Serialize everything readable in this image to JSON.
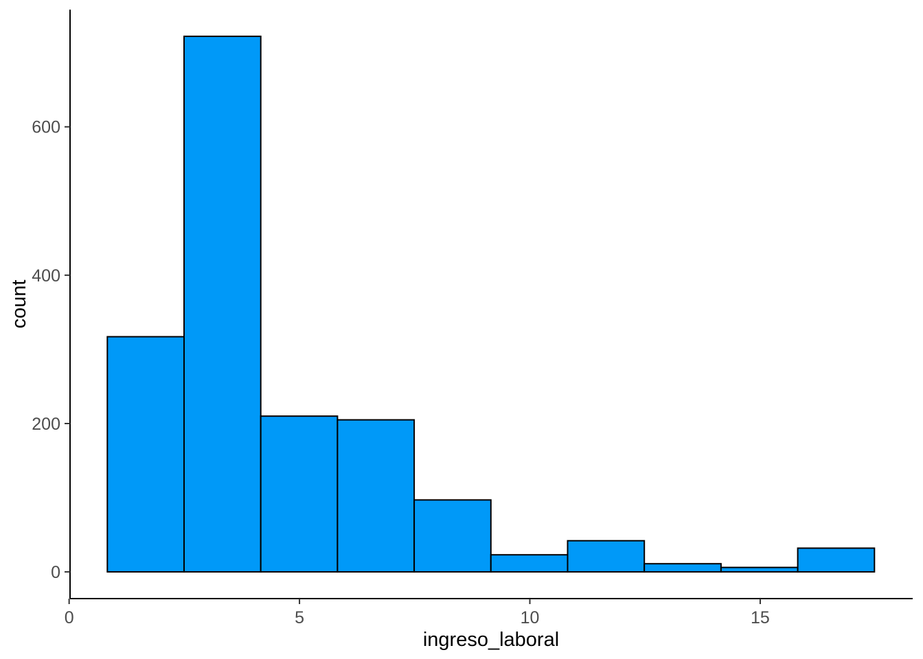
{
  "chart_data": {
    "type": "bar",
    "subtype": "histogram",
    "title": "",
    "xlabel": "ingreso_laboral",
    "ylabel": "count",
    "bins": {
      "start": 0.83,
      "width": 1.665,
      "edges": [
        0.83,
        2.495,
        4.16,
        5.825,
        7.49,
        9.155,
        10.82,
        12.485,
        14.15,
        15.815,
        17.48
      ]
    },
    "values": [
      317,
      722,
      210,
      205,
      97,
      23,
      42,
      11,
      6,
      32
    ],
    "x_ticks": [
      0,
      5,
      10,
      15
    ],
    "y_ticks": [
      0,
      200,
      400,
      600
    ],
    "xlim": [
      0.02,
      18.31
    ],
    "ylim": [
      -36,
      758
    ],
    "grid": "off",
    "legend": "none",
    "colors": {
      "bar_fill": "#0099F8",
      "bar_stroke": "#000000",
      "axis_line": "#000000",
      "tick_mark": "#333333",
      "tick_label": "#4D4D4D",
      "axis_title": "#000000",
      "background": "#FFFFFF"
    }
  }
}
